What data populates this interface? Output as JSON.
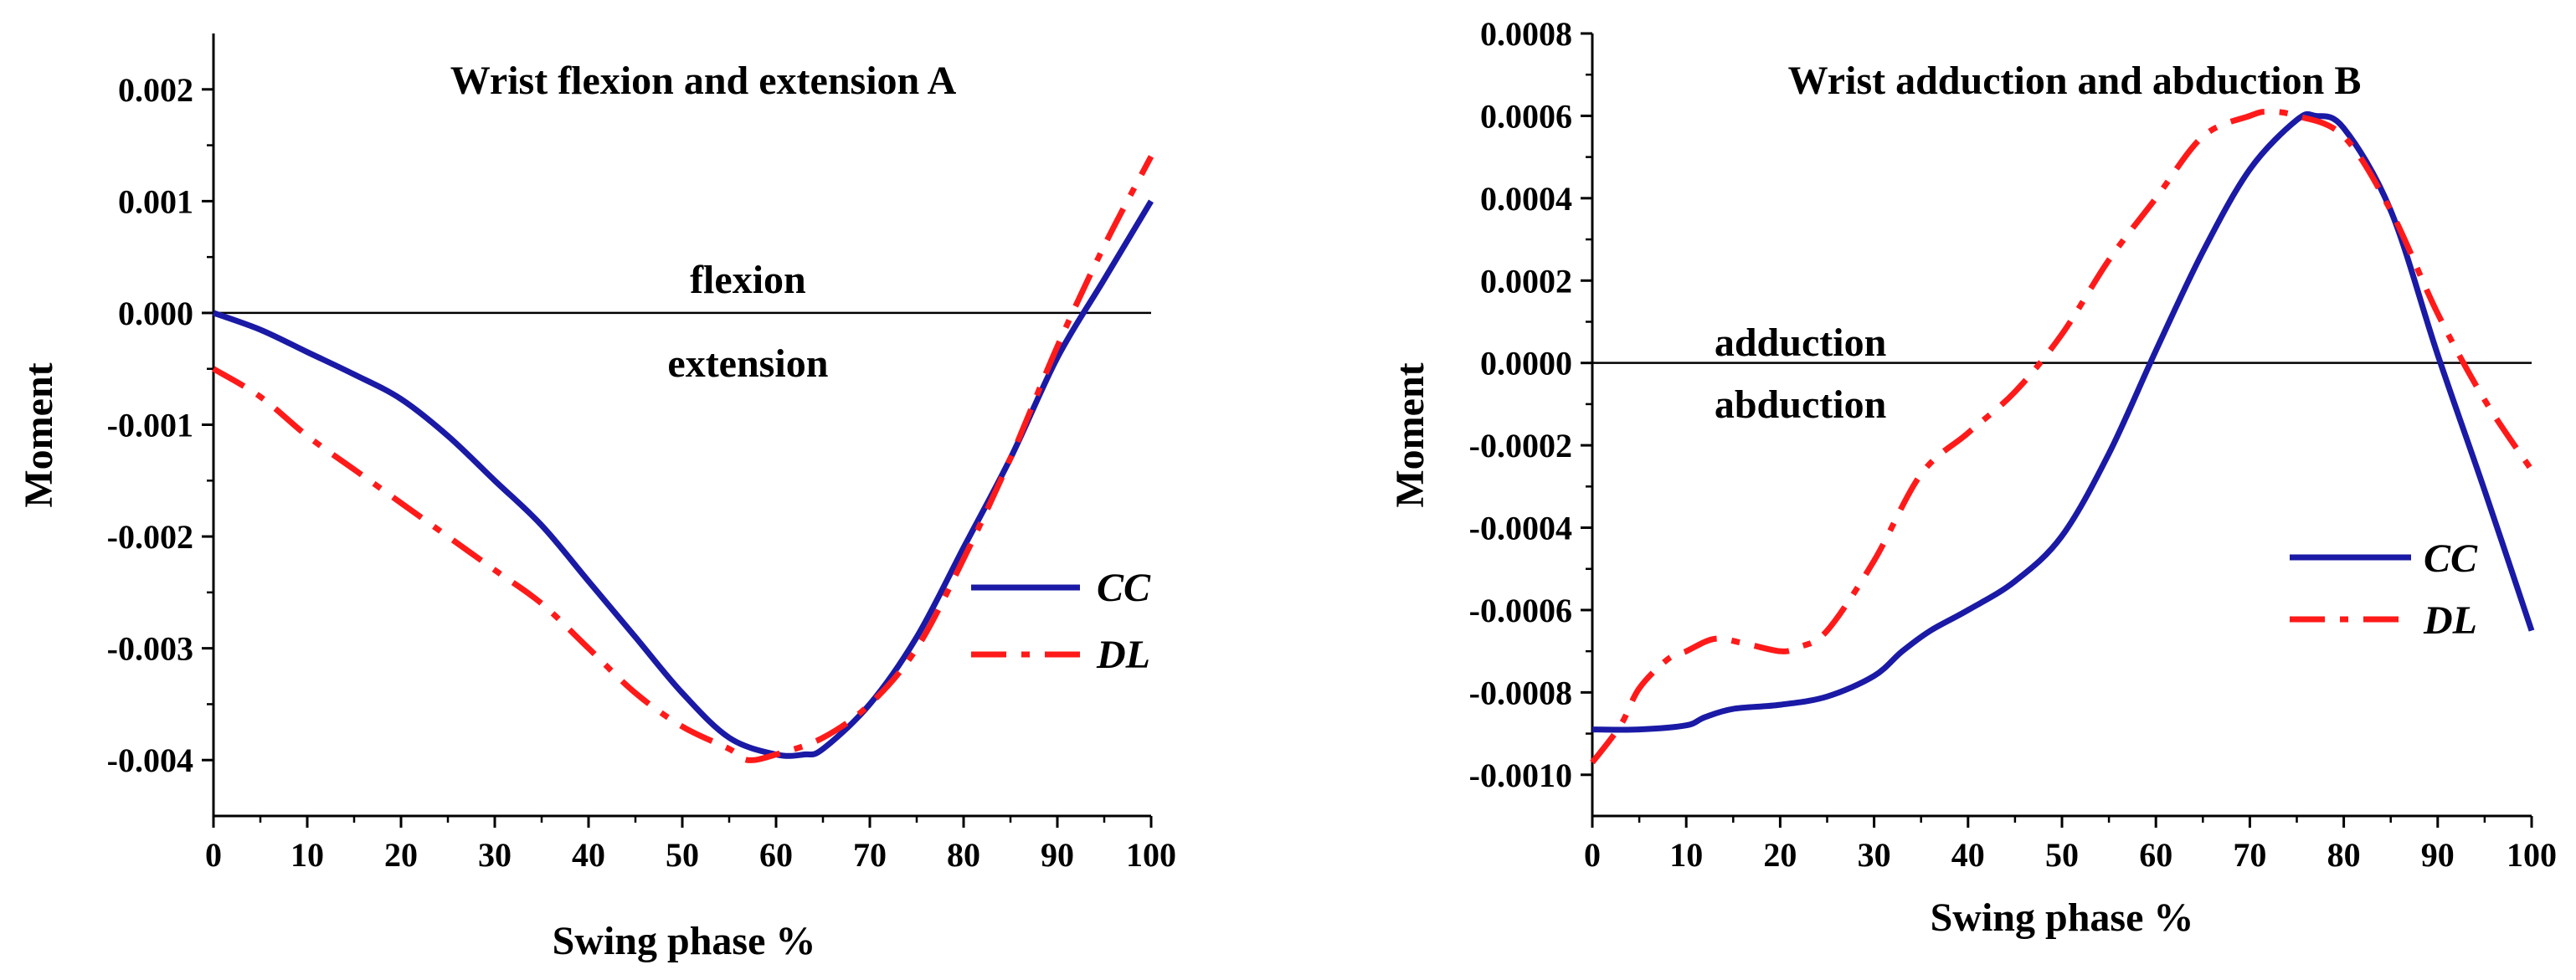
{
  "chart_data": [
    {
      "type": "line",
      "title": "Wrist flexion and extension  A",
      "xlabel": "Swing phase %",
      "ylabel": "Moment",
      "xlim": [
        0,
        100
      ],
      "ylim": [
        -0.0045,
        0.0025
      ],
      "xticks": [
        0,
        10,
        20,
        30,
        40,
        50,
        60,
        70,
        80,
        90,
        100
      ],
      "xtick_labels": [
        "0",
        "10",
        "20",
        "30",
        "40",
        "50",
        "60",
        "70",
        "80",
        "90",
        "100"
      ],
      "yticks": [
        -0.004,
        -0.003,
        -0.002,
        -0.001,
        0.0,
        0.001,
        0.002
      ],
      "ytick_labels": [
        "-0.004",
        "-0.003",
        "-0.002",
        "-0.001",
        "0.000",
        "0.001",
        "0.002"
      ],
      "reference_line_y": 0,
      "annotations": [
        {
          "text": "flexion",
          "x": 57,
          "y": 0.0003
        },
        {
          "text": "extension",
          "x": 57,
          "y": -0.00045
        }
      ],
      "legend_position": "right",
      "grid": false,
      "series": [
        {
          "name": "CC",
          "color": "#1a1aa6",
          "style": "solid",
          "x": [
            0,
            5,
            10,
            15,
            20,
            25,
            30,
            35,
            40,
            45,
            50,
            55,
            60,
            63,
            65,
            70,
            75,
            80,
            85,
            90,
            95,
            100
          ],
          "y": [
            0.0,
            -0.00015,
            -0.00035,
            -0.00055,
            -0.00077,
            -0.0011,
            -0.0015,
            -0.0019,
            -0.0024,
            -0.0029,
            -0.0034,
            -0.0038,
            -0.00395,
            -0.00395,
            -0.0039,
            -0.0035,
            -0.0029,
            -0.0021,
            -0.0013,
            -0.0004,
            0.0003,
            0.001
          ]
        },
        {
          "name": "DL",
          "color": "#ff1a1a",
          "style": "dashdot",
          "x": [
            0,
            5,
            10,
            15,
            20,
            25,
            30,
            35,
            40,
            45,
            50,
            55,
            57,
            60,
            65,
            70,
            75,
            80,
            85,
            90,
            95,
            100
          ],
          "y": [
            -0.0005,
            -0.00075,
            -0.0011,
            -0.0014,
            -0.0017,
            -0.002,
            -0.0023,
            -0.0026,
            -0.003,
            -0.0034,
            -0.0037,
            -0.0039,
            -0.004,
            -0.00395,
            -0.0038,
            -0.0035,
            -0.003,
            -0.0022,
            -0.0013,
            -0.0003,
            0.0006,
            0.0014
          ]
        }
      ]
    },
    {
      "type": "line",
      "title": "Wrist adduction and abduction  B",
      "xlabel": "Swing phase %",
      "ylabel": "Moment",
      "xlim": [
        0,
        100
      ],
      "ylim": [
        -0.0011,
        0.0008
      ],
      "xticks": [
        0,
        10,
        20,
        30,
        40,
        50,
        60,
        70,
        80,
        90,
        100
      ],
      "xtick_labels": [
        "0",
        "10",
        "20",
        "30",
        "40",
        "50",
        "60",
        "70",
        "80",
        "90",
        "100"
      ],
      "yticks": [
        -0.001,
        -0.0008,
        -0.0006,
        -0.0004,
        -0.0002,
        0.0,
        0.0002,
        0.0004,
        0.0006,
        0.0008
      ],
      "ytick_labels": [
        "-0.0010",
        "-0.0008",
        "-0.0006",
        "-0.0004",
        "-0.0002",
        "0.0000",
        "0.0002",
        "0.0004",
        "0.0006",
        "0.0008"
      ],
      "reference_line_y": 0,
      "annotations": [
        {
          "text": "adduction",
          "x": 13,
          "y": 5e-05
        },
        {
          "text": "abduction",
          "x": 13,
          "y": -0.0001
        }
      ],
      "legend_position": "right",
      "grid": false,
      "series": [
        {
          "name": "CC",
          "color": "#1a1aa6",
          "style": "solid",
          "x": [
            0,
            5,
            10,
            12,
            15,
            20,
            25,
            30,
            33,
            36,
            40,
            45,
            50,
            55,
            60,
            65,
            70,
            75,
            77,
            80,
            85,
            90,
            95,
            100
          ],
          "y": [
            -0.00089,
            -0.00089,
            -0.00088,
            -0.00086,
            -0.00084,
            -0.00083,
            -0.00081,
            -0.00076,
            -0.0007,
            -0.00065,
            -0.0006,
            -0.00053,
            -0.00042,
            -0.00022,
            3e-05,
            0.00027,
            0.00047,
            0.00059,
            0.0006,
            0.00057,
            0.00037,
            2e-05,
            -0.00031,
            -0.00065
          ]
        },
        {
          "name": "DL",
          "color": "#ff1a1a",
          "style": "dashdot",
          "x": [
            0,
            3,
            5,
            8,
            10,
            13,
            16,
            20,
            22,
            25,
            30,
            35,
            40,
            45,
            50,
            55,
            60,
            65,
            70,
            72,
            75,
            80,
            85,
            90,
            95,
            100
          ],
          "y": [
            -0.00097,
            -0.00088,
            -0.00079,
            -0.00072,
            -0.0007,
            -0.00067,
            -0.00068,
            -0.0007,
            -0.00069,
            -0.00065,
            -0.00048,
            -0.00027,
            -0.00017,
            -7e-05,
            7e-05,
            0.00025,
            0.0004,
            0.00055,
            0.0006,
            0.00061,
            0.0006,
            0.00055,
            0.00037,
            0.00012,
            -9e-05,
            -0.00026
          ]
        }
      ]
    }
  ]
}
